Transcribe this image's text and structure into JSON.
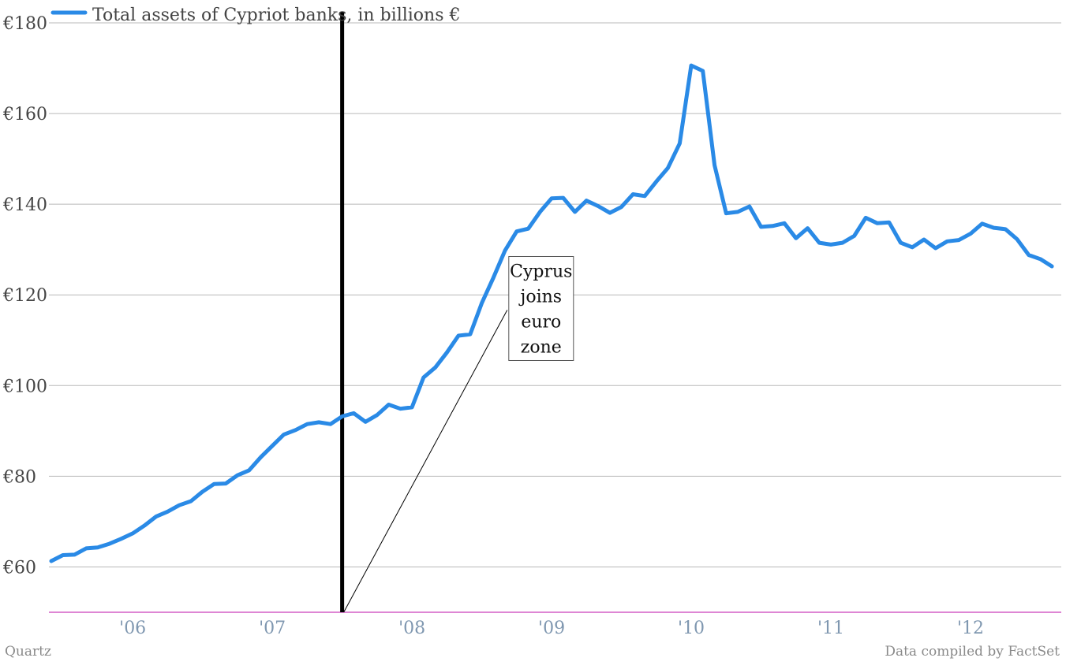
{
  "footer": {
    "source_left": "Quartz",
    "source_right": "Data compiled by FactSet"
  },
  "chart_data": {
    "type": "line",
    "title": "",
    "xlabel": "",
    "ylabel": "",
    "ylim": [
      50,
      180
    ],
    "xlim": [
      2005.4,
      2012.65
    ],
    "grid": true,
    "legend_position": "top-left",
    "y_ticks": [
      60,
      80,
      100,
      120,
      140,
      160,
      180
    ],
    "y_tick_labels": [
      "€60",
      "€80",
      "€100",
      "€120",
      "€140",
      "€160",
      "€180"
    ],
    "x_ticks": [
      2006,
      2007,
      2008,
      2009,
      2010,
      2011,
      2012
    ],
    "x_tick_labels": [
      "'06",
      "'07",
      "'08",
      "'09",
      "'10",
      "'11",
      "'12"
    ],
    "colors": {
      "series": "#2a8ae6",
      "axis_text": "#444444",
      "x_tick_text": "#7f97b0",
      "grid": "#b9b9b9",
      "baseline": "#d35fc6",
      "marker_line": "#000000"
    },
    "series": [
      {
        "name": "Total assets of Cypriot banks, in billions €",
        "x": [
          2005.417,
          2005.5,
          2005.583,
          2005.667,
          2005.75,
          2005.833,
          2005.917,
          2006.0,
          2006.083,
          2006.167,
          2006.25,
          2006.333,
          2006.417,
          2006.5,
          2006.583,
          2006.667,
          2006.75,
          2006.833,
          2006.917,
          2007.0,
          2007.083,
          2007.167,
          2007.25,
          2007.333,
          2007.417,
          2007.5,
          2007.583,
          2007.667,
          2007.75,
          2007.833,
          2007.917,
          2008.0,
          2008.083,
          2008.167,
          2008.25,
          2008.333,
          2008.417,
          2008.5,
          2008.583,
          2008.667,
          2008.75,
          2008.833,
          2008.917,
          2009.0,
          2009.083,
          2009.167,
          2009.25,
          2009.333,
          2009.417,
          2009.5,
          2009.583,
          2009.667,
          2009.75,
          2009.833,
          2009.917,
          2010.0,
          2010.083,
          2010.167,
          2010.25,
          2010.333,
          2010.417,
          2010.5,
          2010.583,
          2010.667,
          2010.75,
          2010.833,
          2010.917,
          2011.0,
          2011.083,
          2011.167,
          2011.25,
          2011.333,
          2011.417,
          2011.5,
          2011.583,
          2011.667,
          2011.75,
          2011.833,
          2011.917,
          2012.0,
          2012.083,
          2012.167,
          2012.25,
          2012.333,
          2012.417,
          2012.5,
          2012.583
        ],
        "values": [
          61.3,
          62.6,
          62.7,
          64.1,
          64.3,
          65.1,
          66.2,
          67.4,
          69.1,
          71.1,
          72.2,
          73.6,
          74.5,
          76.6,
          78.3,
          78.4,
          80.2,
          81.3,
          84.2,
          86.7,
          89.2,
          90.2,
          91.5,
          91.9,
          91.5,
          93.2,
          93.9,
          92.0,
          93.5,
          95.8,
          94.9,
          95.2,
          101.8,
          104.0,
          107.3,
          111.0,
          111.3,
          118.2,
          123.8,
          129.8,
          134.0,
          134.6,
          138.3,
          141.3,
          141.4,
          138.3,
          140.8,
          139.6,
          138.1,
          139.4,
          142.2,
          141.8,
          145.0,
          148.0,
          153.4,
          170.6,
          169.4,
          148.6,
          138.0,
          138.3,
          139.5,
          135.0,
          135.2,
          135.8,
          132.5,
          134.7,
          131.5,
          131.1,
          131.5,
          133.0,
          137.0,
          135.8,
          136.0,
          131.5,
          130.5,
          132.2,
          130.3,
          131.8,
          132.1,
          133.5,
          135.7,
          134.8,
          134.5,
          132.3,
          128.8,
          127.9,
          126.3
        ]
      }
    ],
    "annotations": [
      {
        "text_lines": [
          "Cyprus",
          "joins",
          "euro",
          "zone"
        ],
        "x": 2008.925,
        "y": 117.0,
        "arrow_to_x": 2007.5,
        "arrow_to_y": 50
      }
    ],
    "vertical_marker_x": 2007.5
  }
}
